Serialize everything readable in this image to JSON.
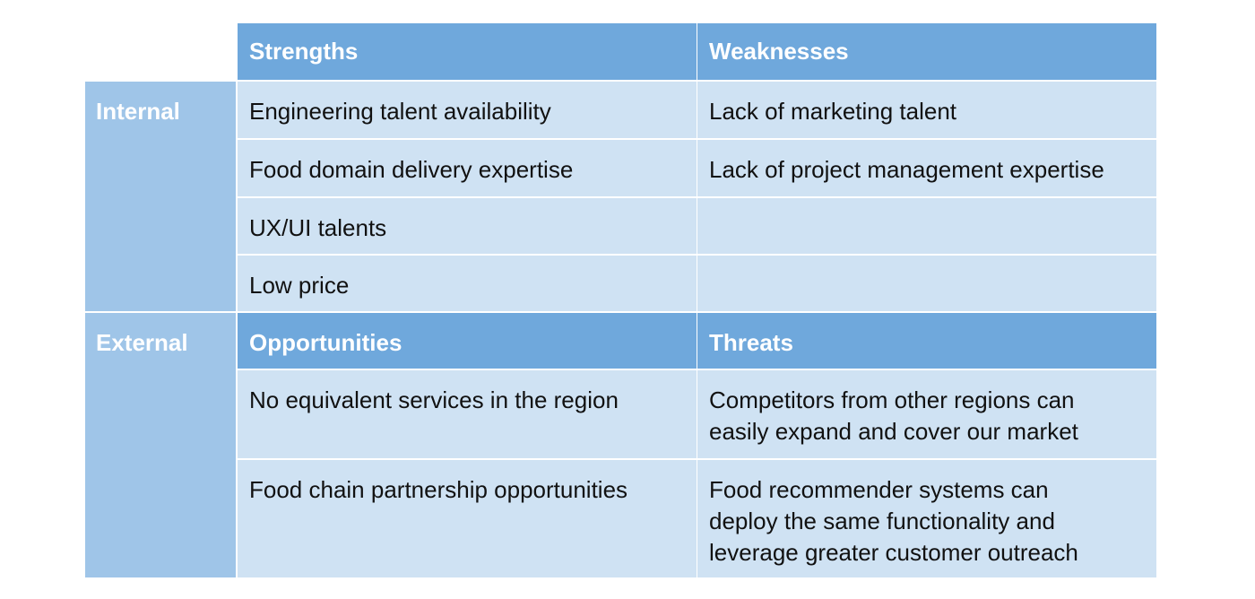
{
  "swot": {
    "headers": {
      "strengths": "Strengths",
      "weaknesses": "Weaknesses",
      "opportunities": "Opportunities",
      "threats": "Threats"
    },
    "row_labels": {
      "internal": "Internal",
      "external": "External"
    },
    "strengths": [
      "Engineering talent availability",
      "Food domain delivery expertise",
      "UX/UI talents",
      "Low price"
    ],
    "weaknesses": [
      "Lack of marketing talent",
      "Lack of project management expertise",
      "",
      ""
    ],
    "opportunities": [
      "No equivalent services in the region",
      "Food chain partnership opportunities"
    ],
    "threats": [
      "Competitors from other regions can easily expand and cover our market",
      "Food recommender systems can deploy the same functionality and leverage greater customer outreach"
    ],
    "colors": {
      "header": "#6fa8dc",
      "row_header": "#9fc5e8",
      "body": "#cfe2f3"
    }
  }
}
